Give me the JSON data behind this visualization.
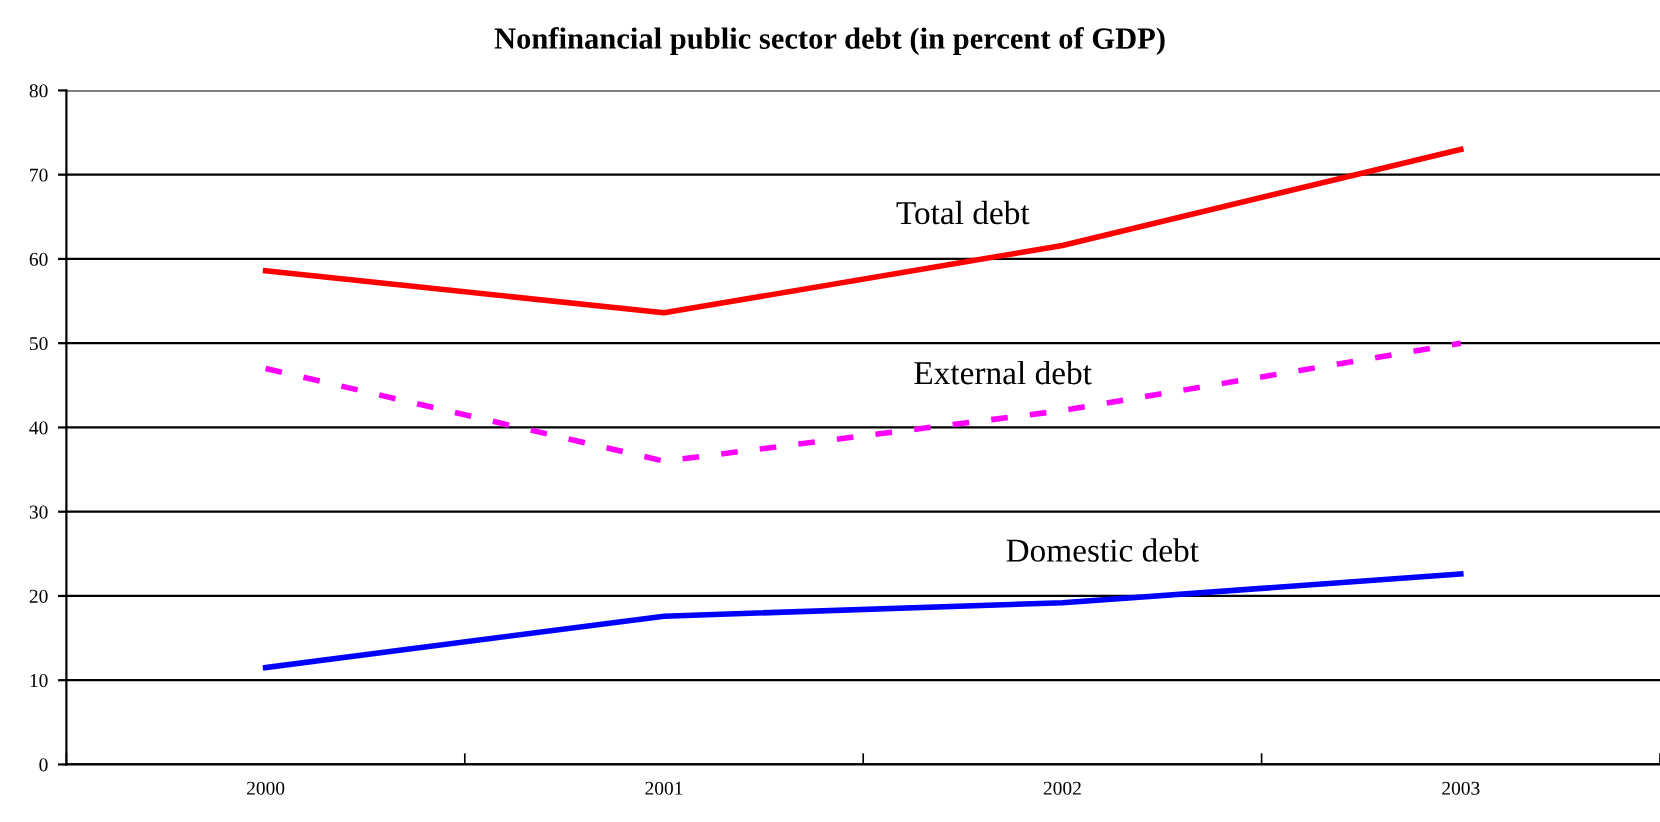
{
  "chart_data": {
    "type": "line",
    "title": "Nonfinancial public sector debt (in percent of GDP)",
    "categories": [
      "2000",
      "2001",
      "2002",
      "2003"
    ],
    "series": [
      {
        "name": "Total debt",
        "color": "#ff0000",
        "line_style": "solid",
        "values": [
          58.6,
          53.6,
          61.6,
          73.0
        ]
      },
      {
        "name": "External debt",
        "color": "#ff00ff",
        "line_style": "dashed",
        "values": [
          47.0,
          36.0,
          42.0,
          50.0
        ]
      },
      {
        "name": "Domestic debt",
        "color": "#0000ff",
        "line_style": "solid",
        "values": [
          11.5,
          17.6,
          19.2,
          22.6
        ]
      }
    ],
    "ylim": [
      0,
      80
    ],
    "yticks": [
      0,
      10,
      20,
      30,
      40,
      50,
      60,
      70,
      80
    ],
    "grid": "y",
    "legend": false,
    "marker": "none"
  }
}
